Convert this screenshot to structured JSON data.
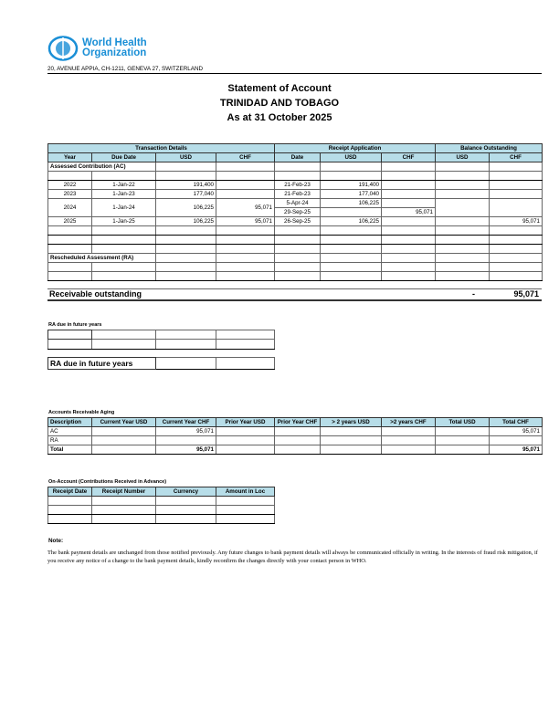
{
  "header": {
    "logo_text_line1": "World Health",
    "logo_text_line2": "Organization",
    "address": "20, AVENUE APPIA, CH-1211, GENEVA 27, SWITZERLAND",
    "title": "Statement of Account",
    "country": "TRINIDAD AND TOBAGO",
    "as_at": "As at 31 October 2025",
    "brand_color": "#1a8fd6",
    "header_fill": "#b7dde8"
  },
  "statement": {
    "groups": [
      "Transaction Details",
      "Receipt Application",
      "Balance Outstanding"
    ],
    "columns": [
      "Year",
      "Due Date",
      "USD",
      "CHF",
      "Date",
      "USD",
      "CHF",
      "USD",
      "CHF"
    ],
    "ac_label": "Assessed Contribution (AC)",
    "ra_label": "Rescheduled Assessment (RA)",
    "rows": [
      {
        "year": "2022",
        "due": "1-Jan-22",
        "usd": "191,400",
        "chf": "",
        "receipts": [
          {
            "date": "21-Feb-23",
            "usd": "191,400",
            "chf": ""
          }
        ],
        "bal_usd": "",
        "bal_chf": ""
      },
      {
        "year": "2023",
        "due": "1-Jan-23",
        "usd": "177,040",
        "chf": "",
        "receipts": [
          {
            "date": "21-Feb-23",
            "usd": "177,040",
            "chf": ""
          }
        ],
        "bal_usd": "",
        "bal_chf": ""
      },
      {
        "year": "2024",
        "due": "1-Jan-24",
        "usd": "106,225",
        "chf": "95,071",
        "receipts": [
          {
            "date": "5-Apr-24",
            "usd": "106,225",
            "chf": ""
          },
          {
            "date": "29-Sep-25",
            "usd": "",
            "chf": "95,071"
          }
        ],
        "bal_usd": "",
        "bal_chf": ""
      },
      {
        "year": "2025",
        "due": "1-Jan-25",
        "usd": "106,225",
        "chf": "95,071",
        "receipts": [
          {
            "date": "26-Sep-25",
            "usd": "106,225",
            "chf": ""
          }
        ],
        "bal_usd": "",
        "bal_chf": "95,071"
      }
    ],
    "receivable_label": "Receivable outstanding",
    "receivable_usd": "-",
    "receivable_chf": "95,071"
  },
  "ra_future": {
    "heading": "RA  due in future years",
    "total_label": "RA due in future years"
  },
  "aging": {
    "heading": "Accounts Receivable Aging",
    "columns": [
      "Description",
      "Current Year USD",
      "Current Year CHF",
      "Prior Year USD",
      "Prior Year CHF",
      "> 2 years USD",
      ">2 years CHF",
      "Total USD",
      "Total CHF"
    ],
    "rows": [
      [
        "AC",
        "",
        "95,071",
        "",
        "",
        "",
        "",
        "",
        "95,071"
      ],
      [
        "RA",
        "",
        "",
        "",
        "",
        "",
        "",
        "",
        ""
      ],
      [
        "Total",
        "",
        "95,071",
        "",
        "",
        "",
        "",
        "",
        "95,071"
      ]
    ]
  },
  "on_account": {
    "heading": "On-Account (Contributions Received in Advance)",
    "columns": [
      "Receipt Date",
      "Receipt Number",
      "Currency",
      "Amount in Loc"
    ]
  },
  "note": {
    "heading": "Note:",
    "text": "The bank payment details are unchanged from those notified previously.  Any future changes to bank payment details will always be communicated officially in writing.  In the interests of fraud risk mitigation, if you receive any notice of a change to the bank payment details, kindly reconfirm the changes directly with your contact person in WHO."
  }
}
